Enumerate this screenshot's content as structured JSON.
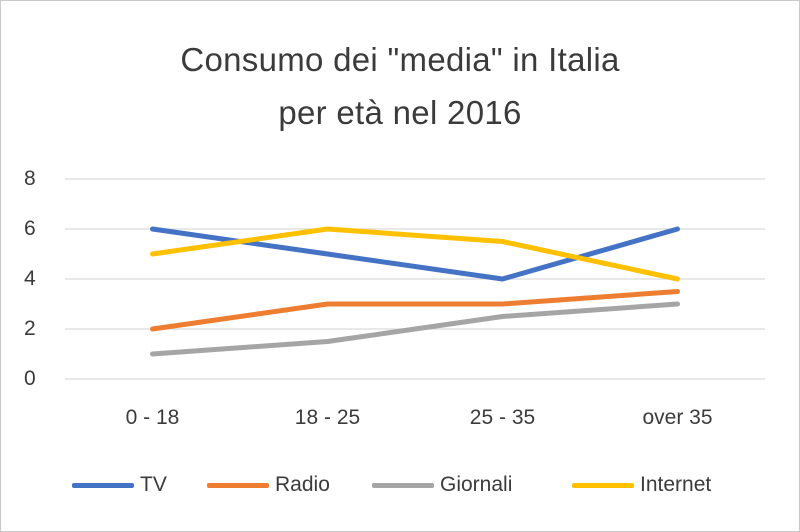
{
  "chart_data": {
    "type": "line",
    "title_lines": [
      "Consumo dei \"media\" in Italia",
      "per età nel 2016"
    ],
    "categories": [
      "0 - 18",
      "18 - 25",
      "25 - 35",
      "over 35"
    ],
    "yticks": [
      "0",
      "2",
      "4",
      "6",
      "8"
    ],
    "ylim": [
      0,
      8
    ],
    "grid": true,
    "legend_position": "bottom",
    "series": [
      {
        "name": "TV",
        "color": "#4472C4",
        "values": [
          6,
          5,
          4,
          6
        ]
      },
      {
        "name": "Radio",
        "color": "#ED7D31",
        "values": [
          2,
          3,
          3,
          3.5
        ]
      },
      {
        "name": "Giornali",
        "color": "#A5A5A5",
        "values": [
          1,
          1.5,
          2.5,
          3
        ]
      },
      {
        "name": "Internet",
        "color": "#FFC000",
        "values": [
          5,
          6,
          5.5,
          4
        ]
      }
    ]
  }
}
